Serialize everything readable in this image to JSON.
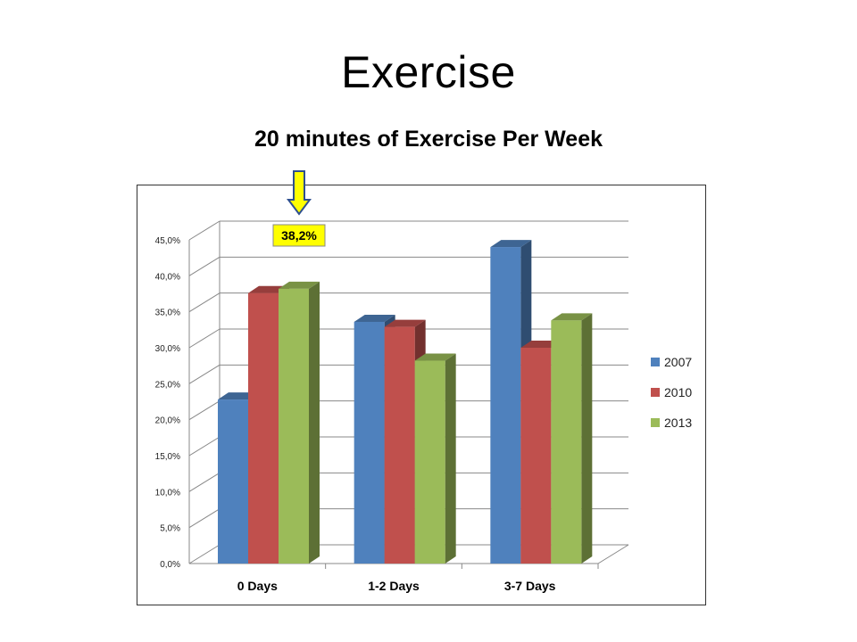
{
  "slide": {
    "title": "Exercise"
  },
  "chart_data": {
    "type": "bar",
    "title": "20 minutes of Exercise Per Week",
    "categories": [
      "0 Days",
      "1-2 Days",
      "3-7 Days"
    ],
    "series": [
      {
        "name": "2007",
        "values": [
          22.8,
          33.6,
          44.0
        ],
        "color": "#4F81BD"
      },
      {
        "name": "2010",
        "values": [
          37.6,
          32.9,
          30.0
        ],
        "color": "#C0504D"
      },
      {
        "name": "2013",
        "values": [
          38.2,
          28.2,
          33.8
        ],
        "color": "#9BBB59"
      }
    ],
    "y_ticks": [
      "0,0%",
      "5,0%",
      "10,0%",
      "15,0%",
      "20,0%",
      "25,0%",
      "30,0%",
      "35,0%",
      "40,0%",
      "45,0%"
    ],
    "ylim": [
      0,
      45
    ],
    "grid": true,
    "legend_position": "right",
    "style": "3d-clustered-column",
    "annotation": {
      "text": "38,2%",
      "series": "2013",
      "category": "0 Days",
      "marker": "yellow down arrow",
      "color": "#FFFF00"
    }
  }
}
